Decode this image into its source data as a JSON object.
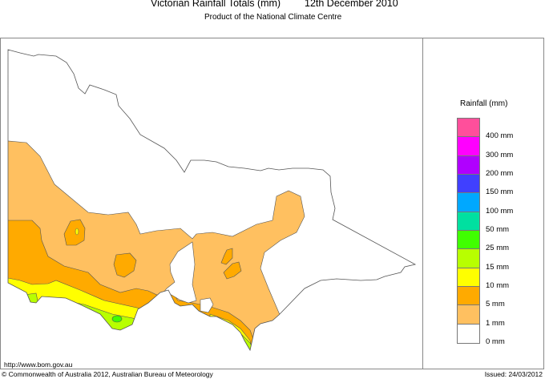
{
  "header": {
    "title": "Victorian Rainfall Totals (mm)",
    "date": "12th December 2010",
    "subtitle": "Product of the National Climate Centre"
  },
  "map": {
    "region": "Victoria",
    "rainfall_zones_present": [
      "1 mm",
      "5 mm",
      "10 mm",
      "15 mm",
      "25 mm"
    ]
  },
  "legend": {
    "title": "Rainfall (mm)",
    "colors": [
      "#ff4f9b",
      "#ff00ff",
      "#b000ff",
      "#4040ff",
      "#00a8ff",
      "#00e0a0",
      "#40ff00",
      "#b8ff00",
      "#ffff00",
      "#ffaa00",
      "#ffc060",
      "#ffffff"
    ],
    "labels": [
      "400 mm",
      "300 mm",
      "200 mm",
      "150 mm",
      "100 mm",
      "50 mm",
      "25 mm",
      "15 mm",
      "10 mm",
      "5 mm",
      "1 mm",
      "0 mm"
    ]
  },
  "footer": {
    "url": "http://www.bom.gov.au",
    "copyright": "© Commonwealth of Australia 2012, Australian Bureau of Meteorology",
    "issued": "Issued: 24/03/2012"
  }
}
